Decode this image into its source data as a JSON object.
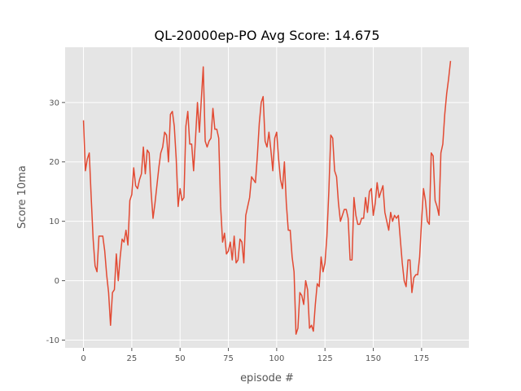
{
  "chart_data": {
    "type": "line",
    "title": "QL-20000ep-PO Avg Score: 14.675",
    "xlabel": "episode #",
    "ylabel": "Score 10ma",
    "color": "#E24A33",
    "grid": true,
    "x": [
      0,
      1,
      2,
      3,
      4,
      5,
      6,
      7,
      8,
      9,
      10,
      11,
      12,
      13,
      14,
      15,
      16,
      17,
      18,
      19,
      20,
      21,
      22,
      23,
      24,
      25,
      26,
      27,
      28,
      29,
      30,
      31,
      32,
      33,
      34,
      35,
      36,
      37,
      38,
      39,
      40,
      41,
      42,
      43,
      44,
      45,
      46,
      47,
      48,
      49,
      50,
      51,
      52,
      53,
      54,
      55,
      56,
      57,
      58,
      59,
      60,
      61,
      62,
      63,
      64,
      65,
      66,
      67,
      68,
      69,
      70,
      71,
      72,
      73,
      74,
      75,
      76,
      77,
      78,
      79,
      80,
      81,
      82,
      83,
      84,
      85,
      86,
      87,
      88,
      89,
      90,
      91,
      92,
      93,
      94,
      95,
      96,
      97,
      98,
      99,
      100,
      101,
      102,
      103,
      104,
      105,
      106,
      107,
      108,
      109,
      110,
      111,
      112,
      113,
      114,
      115,
      116,
      117,
      118,
      119,
      120,
      121,
      122,
      123,
      124,
      125,
      126,
      127,
      128,
      129,
      130,
      131,
      132,
      133,
      134,
      135,
      136,
      137,
      138,
      139,
      140,
      141,
      142,
      143,
      144,
      145,
      146,
      147,
      148,
      149,
      150,
      151,
      152,
      153,
      154,
      155,
      156,
      157,
      158,
      159,
      160,
      161,
      162,
      163,
      164,
      165,
      166,
      167,
      168,
      169,
      170,
      171,
      172,
      173,
      174,
      175,
      176,
      177,
      178,
      179,
      180,
      181,
      182,
      183,
      184,
      185,
      186,
      187,
      188,
      189,
      190
    ],
    "values": [
      27,
      18.5,
      20.5,
      21.5,
      14,
      7,
      2.5,
      1.5,
      7.5,
      7.5,
      7.5,
      5,
      1,
      -2,
      -7.5,
      -2,
      -1.5,
      4.5,
      0,
      4,
      7,
      6.5,
      8.5,
      6,
      13.5,
      14.5,
      19,
      16,
      15.5,
      17,
      18,
      22.5,
      18,
      22,
      21.5,
      15,
      10.5,
      13,
      16,
      19,
      21.5,
      22.5,
      25,
      24.5,
      20,
      28,
      28.5,
      26,
      20.5,
      12.5,
      15.5,
      13.5,
      14,
      26,
      28.5,
      23,
      23,
      18.5,
      24,
      30,
      25,
      30.5,
      36,
      23.5,
      22.5,
      23.5,
      24,
      29,
      25.5,
      25.5,
      24,
      12.5,
      6.5,
      8,
      4.5,
      5,
      6.5,
      3.5,
      7.5,
      3,
      3.5,
      7,
      6.5,
      3,
      11,
      12.5,
      14,
      17.5,
      17,
      16.5,
      21,
      26.5,
      30,
      31,
      23.5,
      22.5,
      25,
      22,
      18.5,
      24,
      25,
      20.5,
      17,
      15.5,
      20,
      13,
      8.5,
      8.5,
      4,
      1.5,
      -9,
      -8,
      -2,
      -2.5,
      -4,
      0,
      -1.5,
      -8,
      -7.5,
      -8.5,
      -4,
      -0.5,
      -1,
      4,
      1.5,
      3,
      7.5,
      15,
      24.5,
      24,
      18.5,
      17.5,
      13,
      10,
      11,
      12,
      12,
      10.5,
      3.5,
      3.5,
      14,
      11,
      9.5,
      9.5,
      10.5,
      10.5,
      14,
      11.5,
      15,
      15.5,
      11,
      13,
      16.5,
      14,
      15,
      16,
      11.5,
      10,
      8.5,
      11.5,
      10,
      11,
      10.5,
      11,
      7,
      3,
      0,
      -1,
      3.5,
      3.5,
      -2,
      0.5,
      1,
      1,
      4,
      10,
      15.5,
      13.5,
      10,
      9.5,
      21.5,
      21,
      13.5,
      12.5,
      11,
      21.5,
      23,
      28,
      31.5,
      34,
      37
    ],
    "xlim": [
      -9.5,
      199.5
    ],
    "ylim": [
      -11.3,
      39.3
    ],
    "xticks": [
      0,
      25,
      50,
      75,
      100,
      125,
      150,
      175
    ],
    "yticks": [
      -10,
      0,
      10,
      20,
      30
    ]
  }
}
